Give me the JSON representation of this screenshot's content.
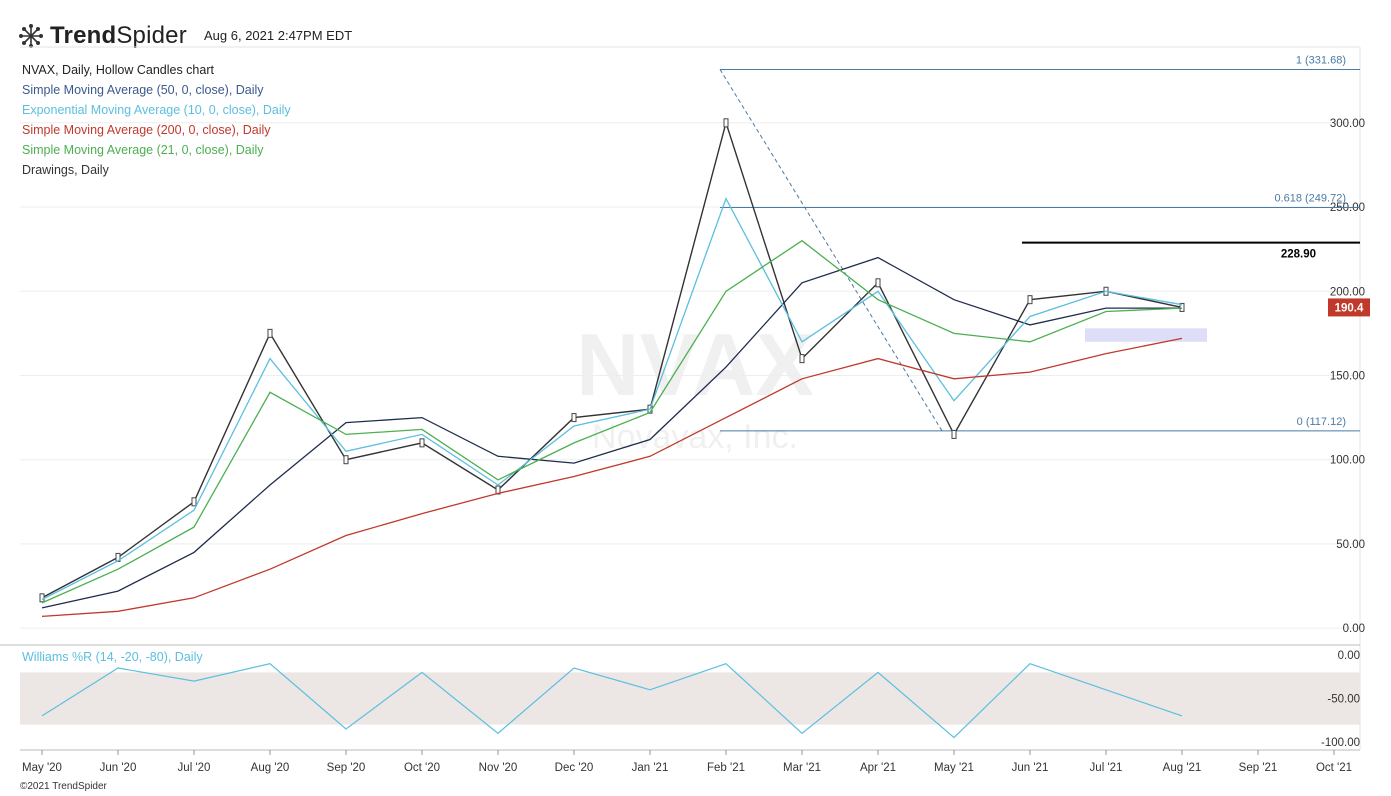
{
  "header": {
    "brand_bold": "Trend",
    "brand_light": "Spider",
    "timestamp": "Aug 6, 2021 2:47PM EDT"
  },
  "legend": {
    "title": "NVAX, Daily, Hollow Candles chart",
    "items": [
      {
        "label": "Simple Moving Average (50, 0, close), Daily",
        "color": "#3a5a8c"
      },
      {
        "label": "Exponential Moving Average (10, 0, close), Daily",
        "color": "#5bbfe0"
      },
      {
        "label": "Simple Moving Average (200, 0, close), Daily",
        "color": "#c0392b"
      },
      {
        "label": "Simple Moving Average (21, 0, close), Daily",
        "color": "#4caf50"
      },
      {
        "label": "Drawings, Daily",
        "color": "#333333"
      }
    ]
  },
  "watermark": {
    "symbol": "NVAX",
    "name": "Novavax, Inc."
  },
  "chart_data": [
    {
      "type": "line",
      "title": "NVAX, Daily, Hollow Candles chart",
      "x": [
        "May '20",
        "Jun '20",
        "Jul '20",
        "Aug '20",
        "Sep '20",
        "Oct '20",
        "Nov '20",
        "Dec '20",
        "Jan '21",
        "Feb '21",
        "Mar '21",
        "Apr '21",
        "May '21",
        "Jun '21",
        "Jul '21",
        "Aug '21",
        "Sep '21",
        "Oct '21"
      ],
      "ylim": [
        -10,
        345
      ],
      "yticks": [
        0,
        50,
        100,
        150,
        200,
        250,
        300
      ],
      "ytick_labels": [
        "0.00",
        "50.00",
        "100.00",
        "150.00",
        "200.00",
        "250.00",
        "300.00"
      ],
      "series": [
        {
          "name": "NVAX close",
          "color": "#333333",
          "values": [
            18,
            42,
            75,
            175,
            100,
            110,
            82,
            125,
            130,
            300,
            160,
            205,
            115,
            195,
            200,
            190.4,
            null,
            null
          ]
        },
        {
          "name": "Simple Moving Average (50, 0, close), Daily",
          "color": "#1f2d4d",
          "values": [
            12,
            22,
            45,
            85,
            122,
            125,
            102,
            98,
            112,
            155,
            205,
            220,
            195,
            180,
            190,
            190,
            null,
            null
          ]
        },
        {
          "name": "Exponential Moving Average (10, 0, close), Daily",
          "color": "#5bbfe0",
          "values": [
            17,
            40,
            70,
            160,
            105,
            115,
            85,
            120,
            130,
            255,
            170,
            200,
            135,
            185,
            200,
            192,
            null,
            null
          ]
        },
        {
          "name": "Simple Moving Average (200, 0, close), Daily",
          "color": "#c0392b",
          "values": [
            7,
            10,
            18,
            35,
            55,
            68,
            80,
            90,
            102,
            125,
            148,
            160,
            148,
            152,
            163,
            172,
            null,
            null
          ]
        },
        {
          "name": "Simple Moving Average (21, 0, close), Daily",
          "color": "#4caf50",
          "values": [
            15,
            35,
            60,
            140,
            115,
            118,
            88,
            110,
            128,
            200,
            230,
            195,
            175,
            170,
            188,
            190,
            null,
            null
          ]
        }
      ],
      "annotations": [
        {
          "label": "1 (331.68)",
          "value": 331.68
        },
        {
          "label": "0.618 (249.72)",
          "value": 249.72
        },
        {
          "label": "0 (117.12)",
          "value": 117.12
        },
        {
          "label": "228.90",
          "value": 228.9
        },
        {
          "label": "190.4",
          "value": 190.4
        }
      ]
    },
    {
      "type": "line",
      "title": "Williams %R (14, -20, -80), Daily",
      "x": [
        "May '20",
        "Jun '20",
        "Jul '20",
        "Aug '20",
        "Sep '20",
        "Oct '20",
        "Nov '20",
        "Dec '20",
        "Jan '21",
        "Feb '21",
        "Mar '21",
        "Apr '21",
        "May '21",
        "Jun '21",
        "Jul '21",
        "Aug '21",
        "Sep '21",
        "Oct '21"
      ],
      "ylim": [
        -100,
        0
      ],
      "yticks": [
        0,
        -50,
        -100
      ],
      "ytick_labels": [
        "0.00",
        "-50.00",
        "-100.00"
      ],
      "band": [
        -80,
        -20
      ],
      "series": [
        {
          "name": "Williams %R",
          "color": "#5bbfe0",
          "values": [
            -70,
            -15,
            -30,
            -10,
            -85,
            -20,
            -90,
            -15,
            -40,
            -10,
            -90,
            -20,
            -95,
            -10,
            -40,
            -70,
            null,
            null
          ]
        }
      ]
    }
  ],
  "footer": {
    "copyright": "©2021 TrendSpider"
  }
}
